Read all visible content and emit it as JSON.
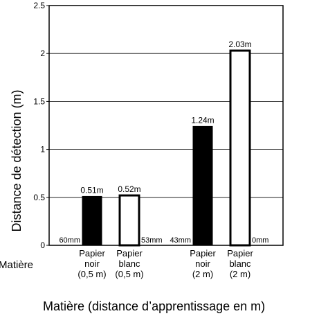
{
  "chart_data": {
    "type": "bar",
    "ylabel": "Distance de détection (m)",
    "xlabel": "Matière (distance d’apprentissage en m)",
    "row_label": "Matière",
    "ylim": [
      0,
      2.5
    ],
    "y_ticks": [
      "0",
      "0.5",
      "1",
      "1.5",
      "2",
      "2.5"
    ],
    "y_tick_values": [
      0,
      0.5,
      1,
      1.5,
      2,
      2.5
    ],
    "grid": true,
    "bars": [
      {
        "category_lines": [
          "Papier",
          "noir",
          "(0,5 m)"
        ],
        "value": 0.51,
        "value_label": "0.51m",
        "fill": "#000000",
        "side_label": "60mm",
        "side_label_position": "left"
      },
      {
        "category_lines": [
          "Papier",
          "blanc",
          "(0,5 m)"
        ],
        "value": 0.52,
        "value_label": "0.52m",
        "fill": "#ffffff",
        "side_label": "53mm",
        "side_label_position": "right"
      },
      {
        "category_lines": [
          "Papier",
          "noir",
          "(2 m)"
        ],
        "value": 1.24,
        "value_label": "1.24m",
        "fill": "#000000",
        "side_label": "43mm",
        "side_label_position": "left"
      },
      {
        "category_lines": [
          "Papier",
          "blanc",
          "(2 m)"
        ],
        "value": 2.03,
        "value_label": "2.03m",
        "fill": "#ffffff",
        "side_label": "0mm",
        "side_label_position": "right"
      }
    ]
  }
}
